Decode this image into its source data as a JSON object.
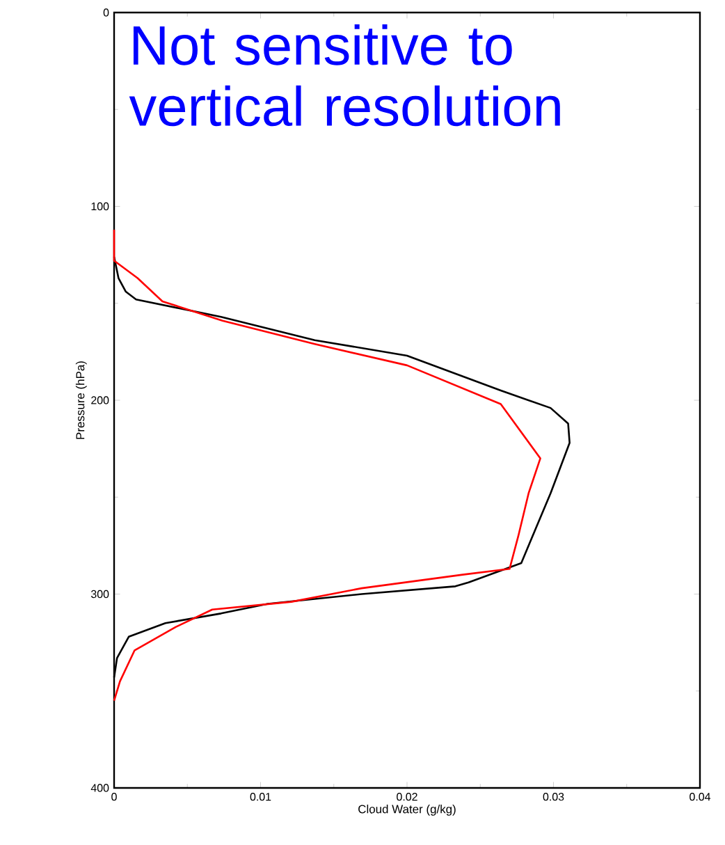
{
  "chart_data": {
    "type": "line",
    "xlabel": "Cloud Water (g/kg)",
    "ylabel": "Pressure (hPa)",
    "annotations": [
      "Not sensitive to vertical resolution"
    ],
    "xlim": [
      0,
      0.04
    ],
    "ylim": [
      400,
      0
    ],
    "xticks": [
      0,
      0.01,
      0.02,
      0.03,
      0.04
    ],
    "yticks": [
      0,
      100,
      200,
      300,
      400
    ],
    "series": [
      {
        "color": "#000000",
        "x": [
          0,
          0.0003,
          0.0008,
          0.0015,
          0.0073,
          0.0137,
          0.02,
          0.0264,
          0.0298,
          0.031,
          0.0311,
          0.0305,
          0.0298,
          0.0288,
          0.0278,
          0.0242,
          0.0233,
          0.0169,
          0.0105,
          0.0073,
          0.0035,
          0.001,
          0.0002,
          0
        ],
        "values": [
          126,
          137,
          144,
          148,
          157,
          169,
          177,
          195,
          204,
          212,
          222,
          234,
          248,
          266,
          284,
          294,
          296,
          300,
          305,
          310,
          315,
          322,
          333,
          343
        ]
      },
      {
        "color": "#ff0000",
        "x": [
          0,
          0,
          0.0016,
          0.0033,
          0.0074,
          0.0137,
          0.02,
          0.0264,
          0.0291,
          0.0283,
          0.0276,
          0.027,
          0.0238,
          0.0169,
          0.0121,
          0.0067,
          0.0042,
          0.0014,
          0.0004,
          0
        ],
        "values": [
          112,
          128,
          137,
          149,
          159,
          171,
          182,
          202,
          230,
          248,
          270,
          287,
          290,
          297,
          304,
          308,
          317,
          329,
          345,
          355
        ]
      }
    ]
  }
}
